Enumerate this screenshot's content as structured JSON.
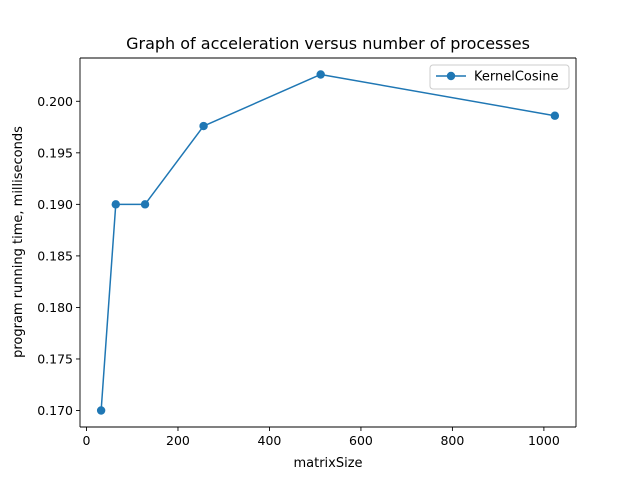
{
  "chart_data": {
    "type": "line",
    "title": "Graph of acceleration versus number of processes",
    "xlabel": "matrixSize",
    "ylabel": "program running time, milliseconds",
    "xlim": [
      -14.2,
      1070.2
    ],
    "ylim": [
      0.1684,
      0.2042
    ],
    "x_ticks": [
      0,
      200,
      400,
      600,
      800,
      1000
    ],
    "y_ticks": [
      0.17,
      0.175,
      0.18,
      0.185,
      0.19,
      0.195,
      0.2
    ],
    "y_tick_labels": [
      "0.170",
      "0.175",
      "0.180",
      "0.185",
      "0.190",
      "0.195",
      "0.200"
    ],
    "grid": false,
    "legend_position": "top-right",
    "series": [
      {
        "name": "KernelCosine",
        "color": "#1f77b4",
        "marker": "circle",
        "x": [
          32,
          64,
          128,
          256,
          512,
          1024
        ],
        "y": [
          0.17,
          0.19,
          0.19,
          0.1976,
          0.2026,
          0.1986
        ]
      }
    ]
  }
}
